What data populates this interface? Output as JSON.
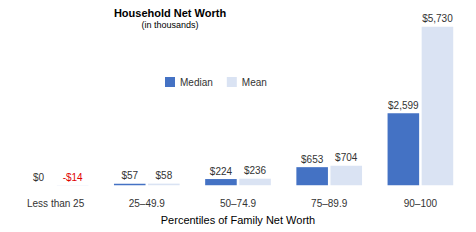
{
  "chart_data": {
    "type": "bar",
    "title": "Household Net Worth",
    "subtitle": "(in thousands)",
    "x_label": "Percentiles of Family Net Worth",
    "categories": [
      "Less than 25",
      "25–49.9",
      "50–74.9",
      "75–89.9",
      "90–100"
    ],
    "series": [
      {
        "name": "Median",
        "color": "#4472c4",
        "values": [
          0,
          57,
          224,
          653,
          2599
        ],
        "value_labels": [
          "$0",
          "$57",
          "$224",
          "$653",
          "$2,599"
        ]
      },
      {
        "name": "Mean",
        "color": "#dae3f3",
        "values": [
          -14,
          58,
          236,
          704,
          5730
        ],
        "value_labels": [
          "-$14",
          "$58",
          "$236",
          "$704",
          "$5,730"
        ]
      }
    ],
    "ylim": [
      -100,
      5900
    ],
    "grid": false,
    "legend": "top",
    "data_labels": true,
    "tick_labels": "x"
  }
}
